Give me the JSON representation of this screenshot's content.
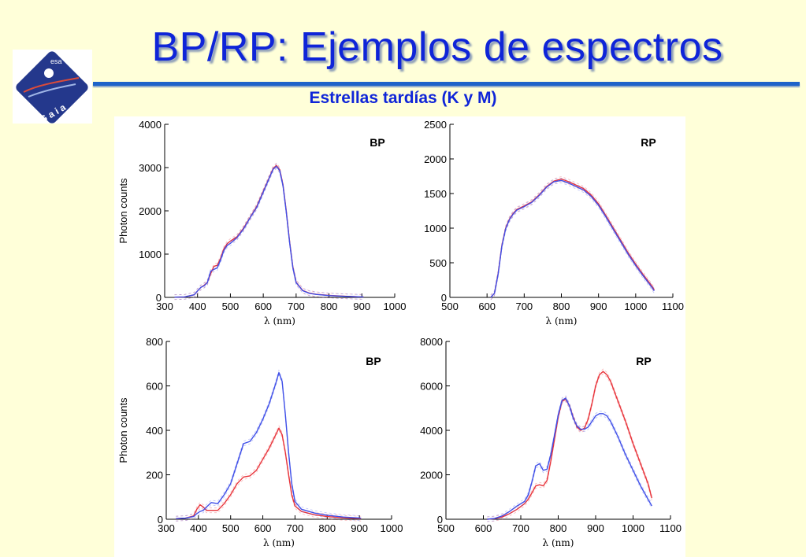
{
  "slide": {
    "title": "BP/RP: Ejemplos de espectros",
    "subtitle": "Estrellas tardías (K y M)"
  },
  "logo": {
    "agency_text": "esa",
    "mission_text": "G a i a"
  },
  "colors": {
    "title": "#0f25d8",
    "rule": "#1e63c9",
    "background": "#ffffd9",
    "red": "#e8333a",
    "blue": "#3f4fe8"
  },
  "chart_data": [
    {
      "type": "line",
      "panel_label": "BP",
      "xlabel": "λ (nm)",
      "ylabel": "Photon counts",
      "xlim": [
        300,
        1000
      ],
      "ylim": [
        0,
        4000
      ],
      "xticks": [
        300,
        400,
        500,
        600,
        700,
        800,
        900,
        1000
      ],
      "yticks": [
        0,
        1000,
        2000,
        3000,
        4000
      ],
      "series": [
        {
          "color": "red",
          "x": [
            330,
            360,
            390,
            400,
            410,
            420,
            430,
            440,
            450,
            460,
            470,
            480,
            490,
            500,
            520,
            540,
            560,
            580,
            600,
            620,
            630,
            640,
            650,
            660,
            670,
            680,
            690,
            700,
            720,
            740,
            760,
            800,
            850,
            905
          ],
          "y": [
            5,
            10,
            60,
            150,
            230,
            280,
            350,
            550,
            720,
            740,
            900,
            1120,
            1240,
            1300,
            1400,
            1600,
            1850,
            2100,
            2450,
            2800,
            2980,
            3050,
            2950,
            2600,
            2000,
            1300,
            700,
            350,
            160,
            100,
            75,
            45,
            25,
            10
          ]
        },
        {
          "color": "blue",
          "x": [
            330,
            360,
            390,
            400,
            410,
            420,
            430,
            440,
            450,
            460,
            470,
            480,
            490,
            500,
            520,
            540,
            560,
            580,
            600,
            620,
            630,
            640,
            650,
            660,
            670,
            680,
            690,
            700,
            720,
            740,
            760,
            800,
            850,
            905
          ],
          "y": [
            5,
            10,
            60,
            150,
            230,
            270,
            340,
            600,
            650,
            680,
            860,
            1080,
            1200,
            1250,
            1380,
            1580,
            1840,
            2080,
            2430,
            2790,
            2960,
            3030,
            2930,
            2580,
            1980,
            1280,
            690,
            340,
            155,
            95,
            70,
            42,
            23,
            10
          ]
        }
      ]
    },
    {
      "type": "line",
      "panel_label": "RP",
      "xlabel": "λ (nm)",
      "ylabel": "",
      "xlim": [
        500,
        1100
      ],
      "ylim": [
        0,
        2500
      ],
      "xticks": [
        500,
        600,
        700,
        800,
        900,
        1000,
        1100
      ],
      "yticks": [
        0,
        500,
        1000,
        1500,
        2000,
        2500
      ],
      "series": [
        {
          "color": "red",
          "x": [
            610,
            620,
            630,
            640,
            650,
            660,
            670,
            680,
            700,
            720,
            740,
            760,
            780,
            800,
            820,
            840,
            860,
            880,
            900,
            920,
            940,
            960,
            980,
            1000,
            1020,
            1040,
            1050
          ],
          "y": [
            0,
            60,
            350,
            750,
            1000,
            1130,
            1210,
            1270,
            1320,
            1380,
            1480,
            1600,
            1680,
            1710,
            1670,
            1620,
            1570,
            1480,
            1350,
            1180,
            1000,
            820,
            640,
            480,
            330,
            190,
            110
          ]
        },
        {
          "color": "blue",
          "x": [
            610,
            620,
            630,
            640,
            650,
            660,
            670,
            680,
            700,
            720,
            740,
            760,
            780,
            800,
            820,
            840,
            860,
            880,
            900,
            920,
            940,
            960,
            980,
            1000,
            1020,
            1040,
            1050
          ],
          "y": [
            0,
            60,
            340,
            740,
            990,
            1120,
            1200,
            1260,
            1310,
            1370,
            1470,
            1590,
            1670,
            1690,
            1650,
            1600,
            1550,
            1460,
            1330,
            1160,
            980,
            800,
            620,
            460,
            310,
            170,
            95
          ]
        }
      ]
    },
    {
      "type": "line",
      "panel_label": "BP",
      "xlabel": "λ (nm)",
      "ylabel": "Photon counts",
      "xlim": [
        300,
        1000
      ],
      "ylim": [
        0,
        800
      ],
      "xticks": [
        300,
        400,
        500,
        600,
        700,
        800,
        900,
        1000
      ],
      "yticks": [
        0,
        200,
        400,
        600,
        800
      ],
      "series": [
        {
          "color": "red",
          "x": [
            330,
            360,
            385,
            395,
            405,
            415,
            425,
            440,
            460,
            480,
            500,
            520,
            540,
            560,
            580,
            600,
            620,
            640,
            650,
            660,
            670,
            680,
            690,
            700,
            720,
            760,
            800,
            850,
            905
          ],
          "y": [
            3,
            5,
            15,
            45,
            65,
            55,
            40,
            40,
            40,
            70,
            110,
            160,
            190,
            195,
            220,
            270,
            320,
            380,
            410,
            380,
            300,
            200,
            110,
            60,
            35,
            20,
            12,
            6,
            3
          ]
        },
        {
          "color": "blue",
          "x": [
            330,
            360,
            385,
            395,
            405,
            415,
            425,
            440,
            460,
            480,
            500,
            520,
            540,
            560,
            580,
            600,
            620,
            640,
            650,
            660,
            670,
            680,
            690,
            700,
            720,
            760,
            800,
            850,
            905
          ],
          "y": [
            3,
            5,
            12,
            25,
            35,
            40,
            55,
            75,
            70,
            110,
            160,
            250,
            340,
            350,
            390,
            450,
            520,
            610,
            660,
            620,
            470,
            300,
            160,
            80,
            45,
            28,
            18,
            10,
            5
          ]
        }
      ]
    },
    {
      "type": "line",
      "panel_label": "RP",
      "xlabel": "λ (nm)",
      "ylabel": "",
      "xlim": [
        500,
        1100
      ],
      "ylim": [
        0,
        8000
      ],
      "xticks": [
        500,
        600,
        700,
        800,
        900,
        1000,
        1100
      ],
      "yticks": [
        0,
        2000,
        4000,
        6000,
        8000
      ],
      "series": [
        {
          "color": "red",
          "x": [
            610,
            630,
            650,
            670,
            690,
            710,
            720,
            730,
            740,
            750,
            760,
            770,
            780,
            790,
            800,
            810,
            820,
            830,
            840,
            850,
            860,
            870,
            880,
            890,
            900,
            910,
            920,
            930,
            940,
            960,
            980,
            1000,
            1020,
            1040,
            1050
          ],
          "y": [
            0,
            30,
            100,
            250,
            450,
            700,
            900,
            1200,
            1500,
            1550,
            1500,
            1750,
            2600,
            3600,
            4600,
            5300,
            5400,
            5100,
            4600,
            4150,
            4000,
            4100,
            4500,
            5200,
            6000,
            6500,
            6650,
            6500,
            6200,
            5300,
            4400,
            3400,
            2500,
            1600,
            950
          ]
        },
        {
          "color": "blue",
          "x": [
            610,
            630,
            650,
            670,
            690,
            710,
            720,
            730,
            740,
            750,
            760,
            770,
            780,
            790,
            800,
            810,
            820,
            830,
            840,
            850,
            860,
            870,
            880,
            890,
            900,
            910,
            920,
            930,
            940,
            960,
            980,
            1000,
            1020,
            1040,
            1050
          ],
          "y": [
            0,
            40,
            150,
            350,
            600,
            800,
            1100,
            1700,
            2400,
            2500,
            2200,
            2250,
            2900,
            3800,
            4700,
            5350,
            5450,
            5100,
            4550,
            4200,
            4050,
            4050,
            4150,
            4400,
            4650,
            4750,
            4750,
            4650,
            4400,
            3700,
            2900,
            2200,
            1500,
            900,
            600
          ]
        }
      ]
    }
  ]
}
